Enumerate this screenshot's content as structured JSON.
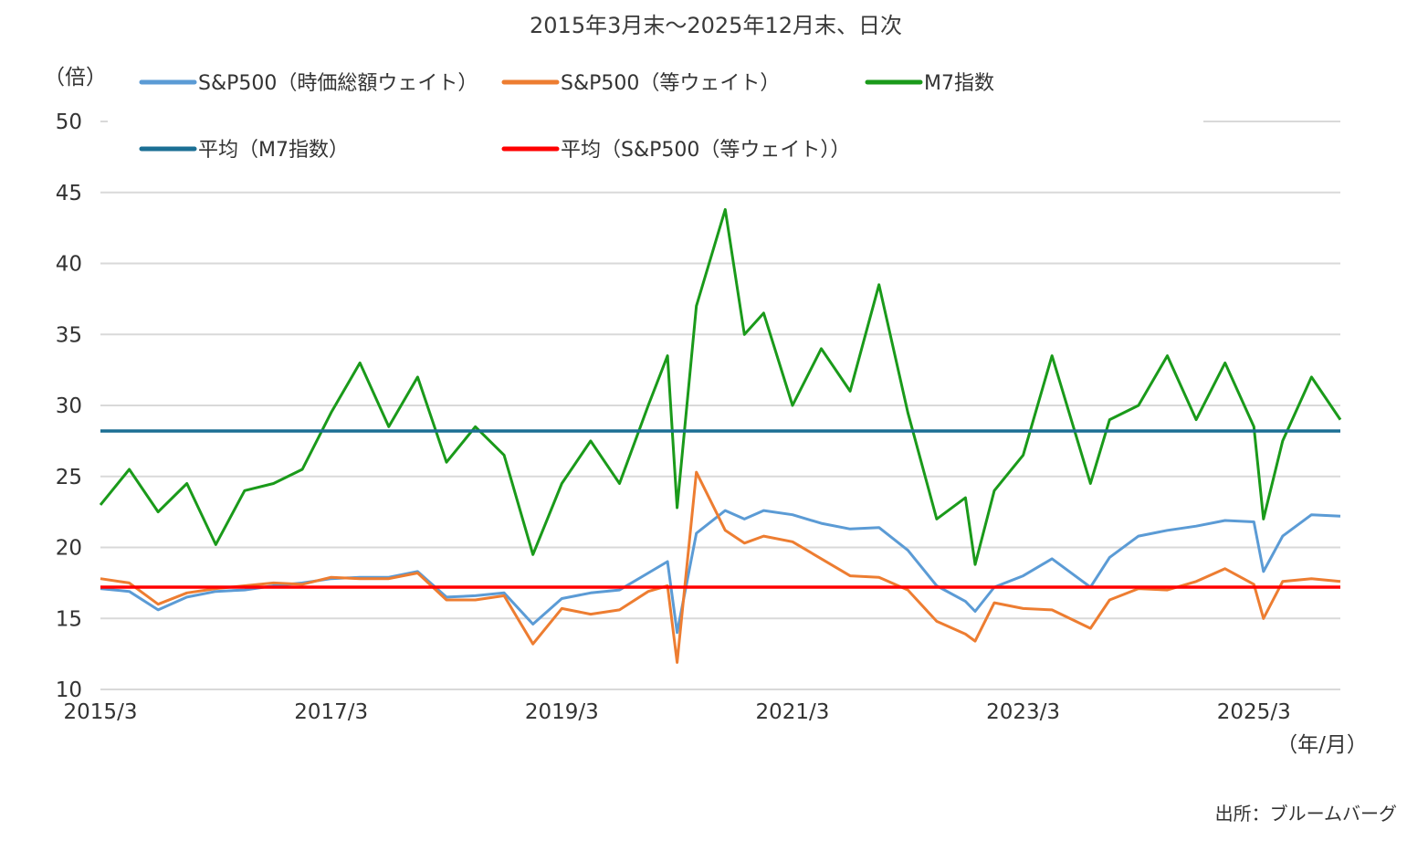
{
  "chart_data": {
    "type": "line",
    "title": "2015年3月末～2025年12月末、日次",
    "ylabel": "（倍）",
    "xlabel": "（年/月）",
    "source": "出所：ブルームバーグ",
    "ylim": [
      10,
      50
    ],
    "yticks": [
      50,
      45,
      40,
      35,
      30,
      25,
      20,
      15,
      10
    ],
    "xticks": [
      "2015/3",
      "2017/3",
      "2019/3",
      "2021/3",
      "2023/3",
      "2025/3"
    ],
    "xlim": [
      "2015-03",
      "2025-12"
    ],
    "grid": true,
    "legend_position": "top-left",
    "series": [
      {
        "name": "S&P500（時価総額ウェイト）",
        "color": "#5b9bd5",
        "x": [
          "2015-03",
          "2015-06",
          "2015-09",
          "2015-12",
          "2016-03",
          "2016-06",
          "2016-09",
          "2016-12",
          "2017-03",
          "2017-06",
          "2017-09",
          "2017-12",
          "2018-03",
          "2018-06",
          "2018-09",
          "2018-12",
          "2019-03",
          "2019-06",
          "2019-09",
          "2019-12",
          "2020-02",
          "2020-03",
          "2020-05",
          "2020-08",
          "2020-10",
          "2020-12",
          "2021-03",
          "2021-06",
          "2021-09",
          "2021-12",
          "2022-03",
          "2022-06",
          "2022-09",
          "2022-10",
          "2022-12",
          "2023-03",
          "2023-06",
          "2023-10",
          "2023-12",
          "2024-03",
          "2024-06",
          "2024-09",
          "2024-12",
          "2025-03",
          "2025-04",
          "2025-06",
          "2025-09",
          "2025-12"
        ],
        "values": [
          17.1,
          16.9,
          15.6,
          16.5,
          16.9,
          17.0,
          17.3,
          17.5,
          17.8,
          17.9,
          17.9,
          18.3,
          16.5,
          16.6,
          16.8,
          14.6,
          16.4,
          16.8,
          17.0,
          18.2,
          19.0,
          14.0,
          21.0,
          22.6,
          22.0,
          22.6,
          22.3,
          21.7,
          21.3,
          21.4,
          19.8,
          17.3,
          16.2,
          15.5,
          17.2,
          18.0,
          19.2,
          17.2,
          19.3,
          20.8,
          21.2,
          21.5,
          21.9,
          21.8,
          18.3,
          20.8,
          22.3,
          22.2
        ]
      },
      {
        "name": "S&P500（等ウェイト）",
        "color": "#ed7d31",
        "x": [
          "2015-03",
          "2015-06",
          "2015-09",
          "2015-12",
          "2016-03",
          "2016-06",
          "2016-09",
          "2016-12",
          "2017-03",
          "2017-06",
          "2017-09",
          "2017-12",
          "2018-03",
          "2018-06",
          "2018-09",
          "2018-12",
          "2019-03",
          "2019-06",
          "2019-09",
          "2019-12",
          "2020-02",
          "2020-03",
          "2020-05",
          "2020-08",
          "2020-10",
          "2020-12",
          "2021-03",
          "2021-06",
          "2021-09",
          "2021-12",
          "2022-03",
          "2022-06",
          "2022-09",
          "2022-10",
          "2022-12",
          "2023-03",
          "2023-06",
          "2023-10",
          "2023-12",
          "2024-03",
          "2024-06",
          "2024-09",
          "2024-12",
          "2025-03",
          "2025-04",
          "2025-06",
          "2025-09",
          "2025-12"
        ],
        "values": [
          17.8,
          17.5,
          16.0,
          16.8,
          17.1,
          17.3,
          17.5,
          17.4,
          17.9,
          17.8,
          17.8,
          18.2,
          16.3,
          16.3,
          16.6,
          13.2,
          15.7,
          15.3,
          15.6,
          16.9,
          17.3,
          11.9,
          25.3,
          21.2,
          20.3,
          20.8,
          20.4,
          19.2,
          18.0,
          17.9,
          17.0,
          14.8,
          13.9,
          13.4,
          16.1,
          15.7,
          15.6,
          14.3,
          16.3,
          17.1,
          17.0,
          17.6,
          18.5,
          17.4,
          15.0,
          17.6,
          17.8,
          17.6
        ]
      },
      {
        "name": "M7指数",
        "color": "#1a9a1a",
        "x": [
          "2015-03",
          "2015-06",
          "2015-09",
          "2015-12",
          "2016-03",
          "2016-06",
          "2016-09",
          "2016-12",
          "2017-03",
          "2017-06",
          "2017-09",
          "2017-12",
          "2018-03",
          "2018-06",
          "2018-09",
          "2018-12",
          "2019-03",
          "2019-06",
          "2019-09",
          "2019-12",
          "2020-02",
          "2020-03",
          "2020-05",
          "2020-08",
          "2020-10",
          "2020-12",
          "2021-03",
          "2021-06",
          "2021-09",
          "2021-12",
          "2022-03",
          "2022-06",
          "2022-09",
          "2022-10",
          "2022-12",
          "2023-03",
          "2023-06",
          "2023-10",
          "2023-12",
          "2024-03",
          "2024-06",
          "2024-09",
          "2024-12",
          "2025-03",
          "2025-04",
          "2025-06",
          "2025-09",
          "2025-12"
        ],
        "values": [
          23.0,
          25.5,
          22.5,
          24.5,
          20.2,
          24.0,
          24.5,
          25.5,
          29.5,
          33.0,
          28.5,
          32.0,
          26.0,
          28.5,
          26.5,
          19.5,
          24.5,
          27.5,
          24.5,
          30.0,
          33.5,
          22.8,
          37.0,
          43.8,
          35.0,
          36.5,
          30.0,
          34.0,
          31.0,
          38.5,
          29.5,
          22.0,
          23.5,
          18.8,
          24.0,
          26.5,
          33.5,
          24.5,
          29.0,
          30.0,
          33.5,
          29.0,
          33.0,
          28.5,
          22.0,
          27.5,
          32.0,
          29.0
        ]
      },
      {
        "name": "平均（M7指数）",
        "color": "#1b6f94",
        "x": [
          "2015-03",
          "2025-12"
        ],
        "values": [
          28.2,
          28.2
        ]
      },
      {
        "name": "平均（S&P500（等ウェイト））",
        "color": "#ff0000",
        "x": [
          "2015-03",
          "2025-12"
        ],
        "values": [
          17.2,
          17.2
        ]
      }
    ]
  }
}
